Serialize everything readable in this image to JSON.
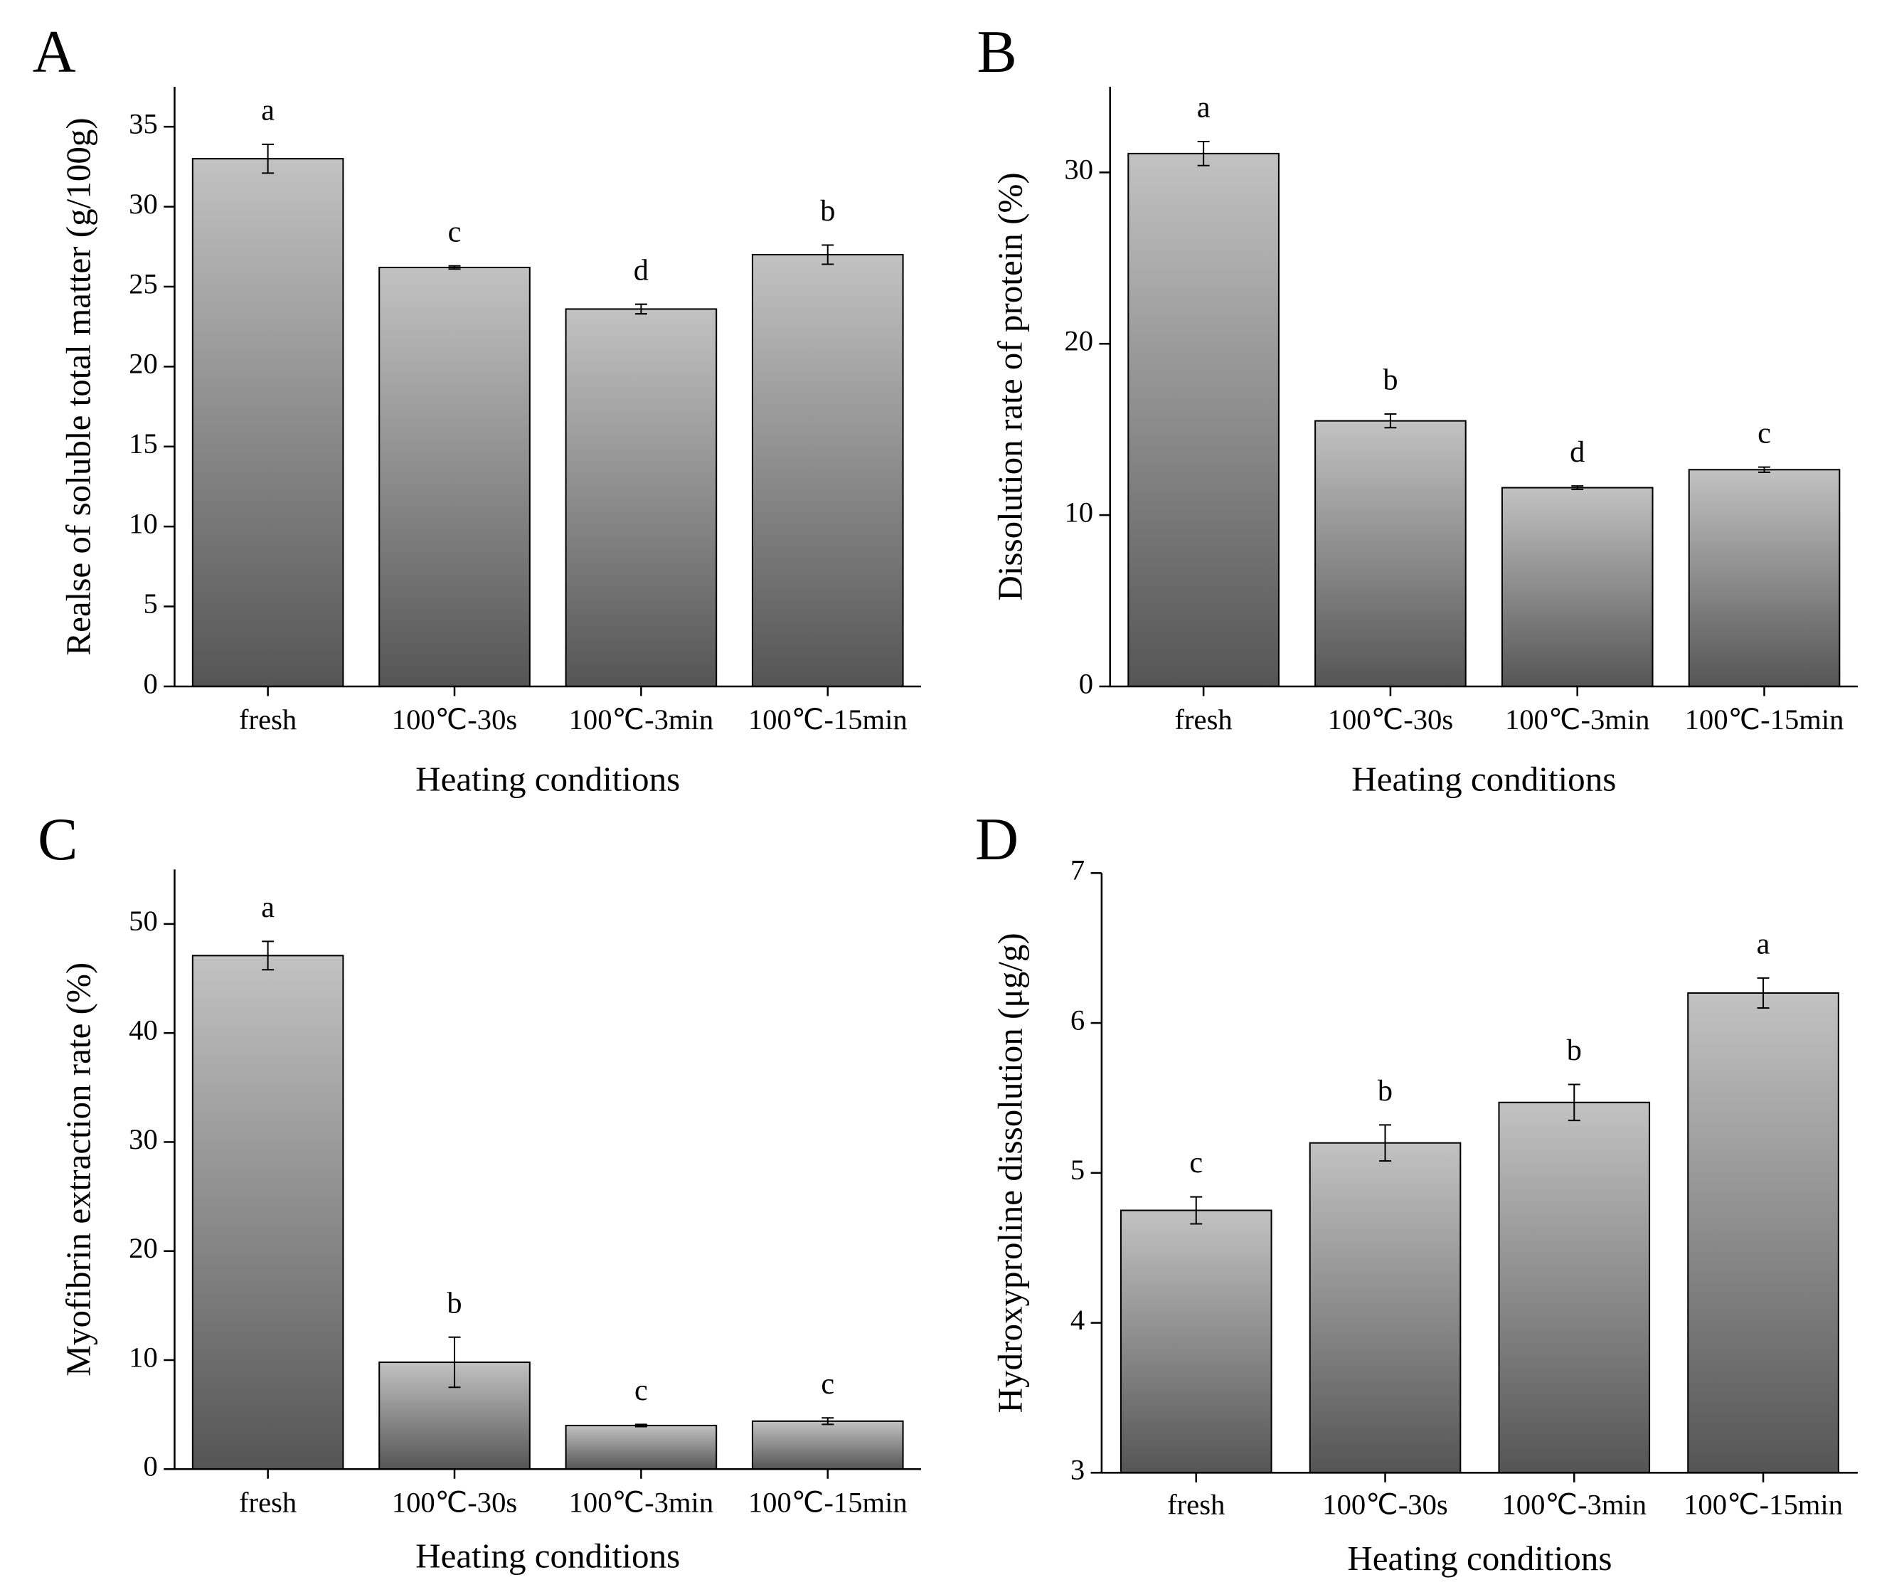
{
  "chart_data": [
    {
      "type": "bar",
      "panel": "A",
      "ylabel": "Realse of soluble total matter (g/100g)",
      "xlabel": "Heating conditions",
      "categories": [
        "fresh",
        "100℃-30s",
        "100℃-3min",
        "100℃-15min"
      ],
      "values": [
        33.0,
        26.2,
        23.6,
        27.0
      ],
      "errors": [
        0.9,
        0.1,
        0.3,
        0.6
      ],
      "annotations": [
        "a",
        "c",
        "d",
        "b"
      ],
      "ylim": [
        0,
        37.5
      ],
      "yticks": [
        0,
        5,
        10,
        15,
        20,
        25,
        30,
        35
      ]
    },
    {
      "type": "bar",
      "panel": "B",
      "ylabel": "Dissolution rate of protein (%)",
      "xlabel": "Heating conditions",
      "categories": [
        "fresh",
        "100℃-30s",
        "100℃-3min",
        "100℃-15min"
      ],
      "values": [
        31.1,
        15.5,
        11.6,
        12.65
      ],
      "errors": [
        0.7,
        0.4,
        0.1,
        0.15
      ],
      "annotations": [
        "a",
        "b",
        "d",
        "c"
      ],
      "ylim": [
        0,
        35
      ],
      "yticks": [
        0,
        10,
        20,
        30
      ]
    },
    {
      "type": "bar",
      "panel": "C",
      "ylabel": "Myofibrin extraction rate (%)",
      "xlabel": "Heating conditions",
      "categories": [
        "fresh",
        "100℃-30s",
        "100℃-3min",
        "100℃-15min"
      ],
      "values": [
        47.1,
        9.8,
        4.0,
        4.4
      ],
      "errors": [
        1.3,
        2.3,
        0.1,
        0.3
      ],
      "annotations": [
        "a",
        "b",
        "c",
        "c"
      ],
      "ylim": [
        0,
        55
      ],
      "yticks": [
        0,
        10,
        20,
        30,
        40,
        50
      ]
    },
    {
      "type": "bar",
      "panel": "D",
      "ylabel": "Hydroxyproline dissolution (μg/g)",
      "xlabel": "Heating conditions",
      "categories": [
        "fresh",
        "100℃-30s",
        "100℃-3min",
        "100℃-15min"
      ],
      "values": [
        4.75,
        5.2,
        5.47,
        6.2
      ],
      "errors": [
        0.09,
        0.12,
        0.12,
        0.1
      ],
      "annotations": [
        "c",
        "b",
        "b",
        "a"
      ],
      "ylim": [
        3,
        7
      ],
      "yticks": [
        3,
        4,
        5,
        6,
        7
      ]
    }
  ]
}
